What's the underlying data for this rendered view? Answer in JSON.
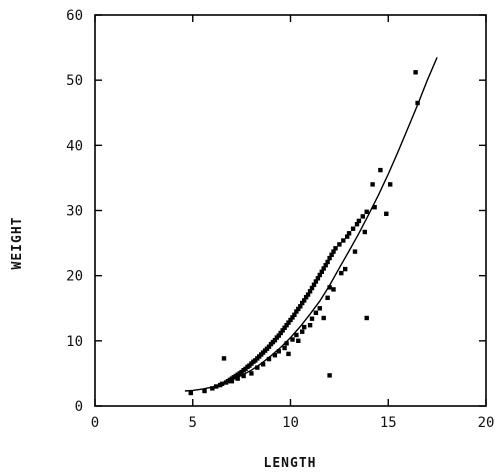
{
  "chart_data": {
    "type": "scatter",
    "title": "",
    "xlabel": "LENGTH",
    "ylabel": "WEIGHT",
    "xlim": [
      0,
      20
    ],
    "ylim": [
      0,
      60
    ],
    "xticks": [
      0,
      5,
      10,
      15,
      20
    ],
    "yticks": [
      0,
      10,
      20,
      30,
      40,
      50,
      60
    ],
    "grid": false,
    "legend": "none",
    "colors": {
      "points": "#000000",
      "line": "#000000",
      "axes": "#000000"
    },
    "series": [
      {
        "kind": "points",
        "x": [
          4.9,
          5.6,
          6.0,
          6.2,
          6.4,
          6.5,
          6.7,
          6.8,
          6.9,
          7.0,
          7.1,
          7.2,
          7.3,
          7.4,
          7.5,
          7.6,
          7.7,
          7.8,
          7.9,
          8.0,
          8.1,
          8.2,
          8.3,
          8.4,
          8.5,
          8.6,
          8.7,
          8.8,
          8.9,
          9.0,
          9.1,
          9.2,
          9.3,
          9.4,
          9.5,
          9.6,
          9.7,
          9.8,
          9.9,
          10.0,
          10.1,
          10.2,
          10.3,
          10.4,
          10.5,
          10.6,
          10.7,
          10.8,
          10.9,
          11.0,
          11.1,
          11.2,
          11.3,
          11.4,
          11.5,
          11.6,
          11.7,
          11.8,
          11.9,
          12.0,
          12.1,
          12.2,
          12.3,
          12.5,
          12.7,
          12.9,
          13.0,
          13.2,
          13.4,
          13.5,
          13.7,
          13.9,
          14.2,
          14.3,
          14.6,
          14.9,
          15.1,
          16.4,
          16.5,
          7.0,
          7.6,
          8.3,
          8.9,
          9.4,
          9.8,
          10.3,
          10.7,
          11.1,
          11.5,
          11.9,
          12.2,
          12.8,
          13.3,
          13.8,
          6.6,
          7.3,
          8.0,
          8.6,
          9.2,
          9.7,
          10.1,
          10.6,
          11.3,
          12.0,
          12.6,
          11.7,
          13.9,
          12.0,
          9.9,
          10.4,
          11.0
        ],
        "y": [
          2.0,
          2.3,
          2.7,
          3.0,
          3.2,
          3.4,
          3.6,
          3.8,
          4.0,
          4.2,
          4.4,
          4.6,
          4.8,
          5.0,
          5.2,
          5.5,
          5.7,
          6.0,
          6.2,
          6.5,
          6.8,
          7.0,
          7.3,
          7.6,
          7.9,
          8.2,
          8.5,
          8.8,
          9.1,
          9.5,
          9.8,
          10.1,
          10.5,
          10.8,
          11.2,
          11.6,
          12.0,
          12.4,
          12.8,
          13.2,
          13.6,
          14.0,
          14.5,
          14.9,
          15.3,
          15.8,
          16.2,
          16.7,
          17.1,
          17.6,
          18.1,
          18.6,
          19.1,
          19.6,
          20.1,
          20.6,
          21.1,
          21.6,
          22.1,
          22.7,
          23.2,
          23.7,
          24.2,
          24.8,
          25.4,
          26.0,
          26.5,
          27.2,
          27.9,
          28.4,
          29.1,
          29.8,
          34.0,
          30.5,
          36.2,
          29.5,
          34.0,
          51.2,
          46.5,
          3.8,
          4.6,
          5.9,
          7.2,
          8.4,
          9.6,
          10.9,
          12.1,
          13.4,
          15.0,
          16.6,
          17.9,
          21.0,
          23.7,
          26.7,
          7.3,
          4.2,
          5.0,
          6.4,
          7.8,
          8.9,
          10.2,
          11.4,
          14.3,
          18.2,
          20.4,
          13.5,
          13.5,
          4.7,
          8.0,
          10.0,
          12.4
        ]
      },
      {
        "kind": "fit-line",
        "x": [
          4.6,
          5.0,
          5.5,
          6.0,
          6.5,
          7.0,
          7.5,
          8.0,
          8.5,
          9.0,
          9.5,
          10.0,
          10.5,
          11.0,
          11.5,
          12.0,
          12.5,
          13.0,
          13.5,
          14.0,
          14.5,
          15.0,
          15.5,
          16.0,
          16.5,
          17.0,
          17.5
        ],
        "y": [
          2.3,
          2.4,
          2.6,
          2.9,
          3.4,
          4.0,
          4.7,
          5.5,
          6.5,
          7.7,
          9.0,
          10.5,
          12.2,
          14.1,
          16.1,
          18.5,
          21.2,
          23.8,
          26.5,
          29.4,
          32.4,
          35.6,
          39.0,
          42.6,
          46.2,
          50.0,
          53.5
        ]
      }
    ]
  }
}
